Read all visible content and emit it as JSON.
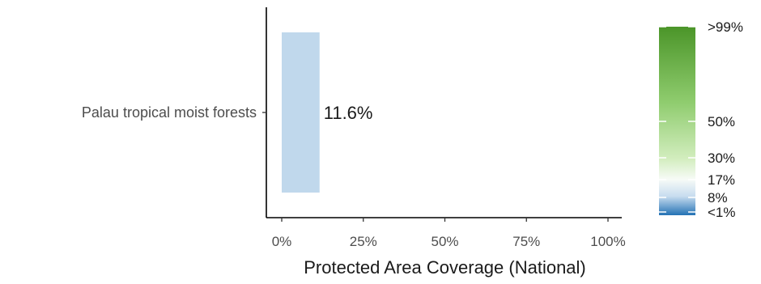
{
  "chart_data": {
    "type": "bar",
    "orientation": "horizontal",
    "categories": [
      "Palau tropical moist forests"
    ],
    "values": [
      11.6
    ],
    "data_labels": [
      "11.6%"
    ],
    "bar_color": "#c0d8ec",
    "xlabel": "Protected Area Coverage (National)",
    "ylabel": "",
    "xlim": [
      0,
      100
    ],
    "x_ticks": [
      0,
      25,
      50,
      75,
      100
    ],
    "x_tick_labels": [
      "0%",
      "25%",
      "50%",
      "75%",
      "100%"
    ],
    "grid": false,
    "legend": {
      "position": "right",
      "type": "colorbar",
      "labels": [
        {
          "value": 99,
          "text": ">99%"
        },
        {
          "value": 50,
          "text": "50%"
        },
        {
          "value": 30,
          "text": "30%"
        },
        {
          "value": 17,
          "text": "17%"
        },
        {
          "value": 8,
          "text": "8%"
        },
        {
          "value": 1,
          "text": "<1%"
        }
      ],
      "colors": {
        "top": "#4b9529",
        "upper": "#8fcc6e",
        "mid_green": "#d2edbe",
        "white": "#f7fbf7",
        "light_blue": "#c7dcef",
        "bottom": "#2372b4"
      }
    }
  }
}
